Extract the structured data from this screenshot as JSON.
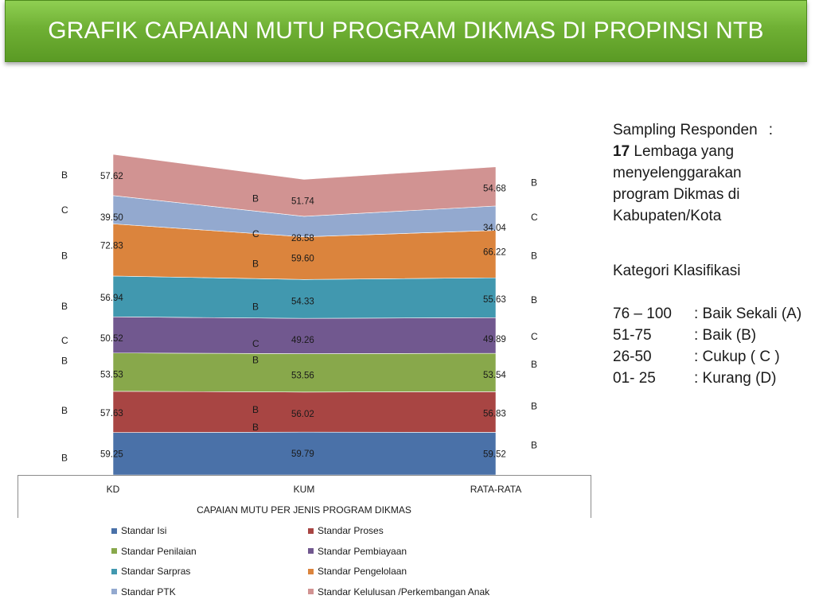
{
  "title": "GRAFIK CAPAIAN MUTU PROGRAM DIKMAS DI PROPINSI NTB",
  "sampling": {
    "line1": "Sampling Responden",
    "colon": ":",
    "count": "17",
    "line2_rest": " Lembaga yang",
    "line3": "menyelenggarakan",
    "line4": "program Dikmas di",
    "line5": "Kabupaten/Kota"
  },
  "kategori": {
    "heading": "Kategori Klasifikasi",
    "rows": [
      {
        "range": "76 – 100",
        "label": ": Baik Sekali (A)"
      },
      {
        "range": "51-75",
        "label": ": Baik (B)"
      },
      {
        "range": "26-50",
        "label": ": Cukup ( C )"
      },
      {
        "range": "01- 25",
        "label": ": Kurang (D)"
      }
    ]
  },
  "chart_data": {
    "type": "area",
    "stacked": true,
    "categories": [
      "KD",
      "KUM",
      "RATA-RATA"
    ],
    "xlabel": "CAPAIAN MUTU PER JENIS PROGRAM DIKMAS",
    "series": [
      {
        "name": "Standar Isi",
        "color": "#4a71a8",
        "values": [
          59.25,
          59.79,
          59.52
        ],
        "grades": [
          "B",
          "B",
          "B"
        ]
      },
      {
        "name": "Standar Proses",
        "color": "#a84543",
        "values": [
          57.63,
          56.02,
          56.83
        ],
        "grades": [
          "B",
          "B",
          "B"
        ]
      },
      {
        "name": "Standar Penilaian",
        "color": "#88a84b",
        "values": [
          53.53,
          53.56,
          53.54
        ],
        "grades": [
          "B",
          "B",
          "B"
        ]
      },
      {
        "name": "Standar Pembiayaan",
        "color": "#71588f",
        "values": [
          50.52,
          49.26,
          49.89
        ],
        "grades": [
          "C",
          "C",
          "C"
        ]
      },
      {
        "name": "Standar Sarpras",
        "color": "#4198af",
        "values": [
          56.94,
          54.33,
          55.63
        ],
        "grades": [
          "B",
          "B",
          "B"
        ]
      },
      {
        "name": "Standar Pengelolaan",
        "color": "#db843d",
        "values": [
          72.83,
          59.6,
          66.22
        ],
        "grades": [
          "B",
          "B",
          "B"
        ]
      },
      {
        "name": "Standar PTK",
        "color": "#93a9cf",
        "values": [
          39.5,
          28.58,
          34.04
        ],
        "grades": [
          "C",
          "C",
          "C"
        ]
      },
      {
        "name": "Standar Kelulusan /Perkembangan Anak",
        "color": "#d19392",
        "values": [
          57.62,
          51.74,
          54.68
        ],
        "grades": [
          "B",
          "B",
          "B"
        ]
      }
    ],
    "value_labels": {
      "KD": [
        "59.25",
        "57.63",
        "53.53",
        "50.52",
        "56.94",
        "72.83",
        "39.50",
        "57.62"
      ],
      "KUM": [
        "59.79",
        "56.02",
        "53.56",
        "49.26",
        "54.33",
        "59.60",
        "28.58",
        "51.74"
      ],
      "RATA-RATA": [
        "59.52",
        "56.83",
        "53.54",
        "49.89",
        "55.63",
        "66.22",
        "34.04",
        "54.68"
      ]
    },
    "legend": [
      "Standar Isi",
      "Standar Proses",
      "Standar Penilaian",
      "Standar Pembiayaan",
      "Standar Sarpras",
      "Standar Pengelolaan",
      "Standar PTK",
      "Standar Kelulusan /Perkembangan Anak"
    ],
    "legend_position": "bottom"
  }
}
